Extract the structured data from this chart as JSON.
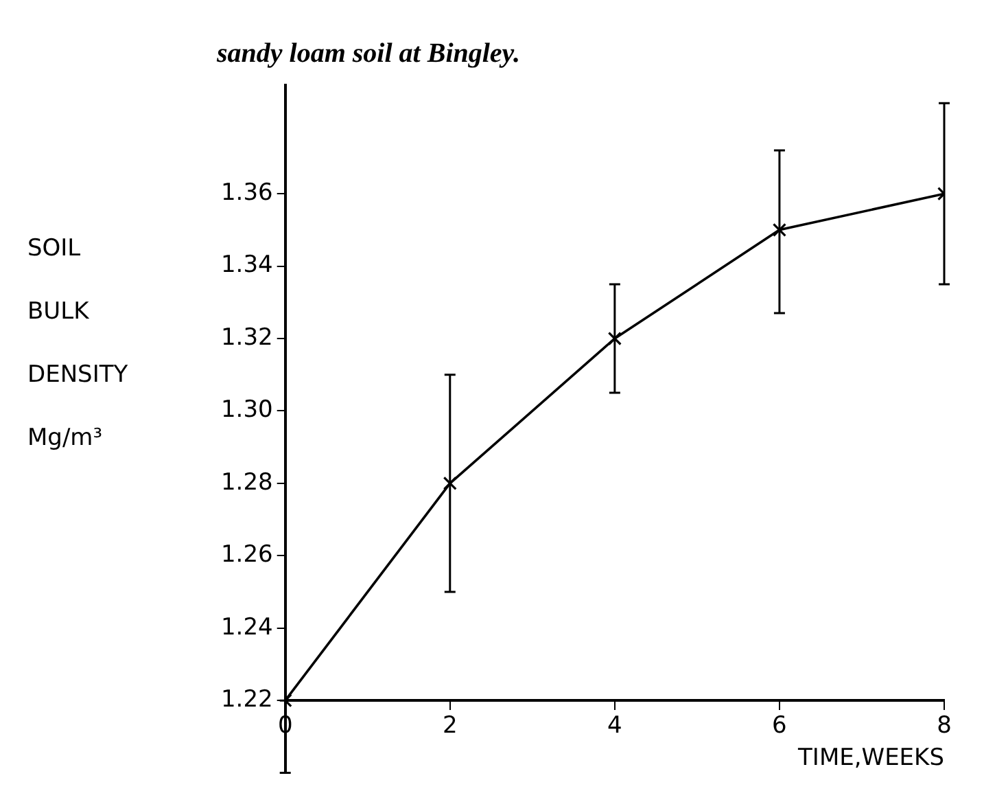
{
  "chart_data": {
    "type": "line",
    "title": "sandy loam soil at Bingley.",
    "ylabel": "SOIL BULK DENSITY Mg/m³",
    "xlabel": "TIME,WEEKS",
    "x": [
      0,
      2,
      4,
      6,
      8
    ],
    "values": [
      1.22,
      1.28,
      1.32,
      1.35,
      1.36
    ],
    "errors": [
      [
        1.2,
        1.22
      ],
      [
        1.25,
        1.31
      ],
      [
        1.305,
        1.335
      ],
      [
        1.327,
        1.372
      ],
      [
        1.335,
        1.385
      ]
    ],
    "color": "#000000",
    "marker": "cross",
    "line_style": "solid",
    "grid": false,
    "legend": false,
    "xlim": [
      0,
      8
    ],
    "xticks": [
      0,
      2,
      4,
      6,
      8
    ],
    "ylim": [
      1.2,
      1.39
    ],
    "yticks": [
      1.22,
      1.24,
      1.26,
      1.28,
      {
        "value": 1.3,
        "label": "1.30"
      },
      1.32,
      1.34,
      1.36
    ]
  }
}
